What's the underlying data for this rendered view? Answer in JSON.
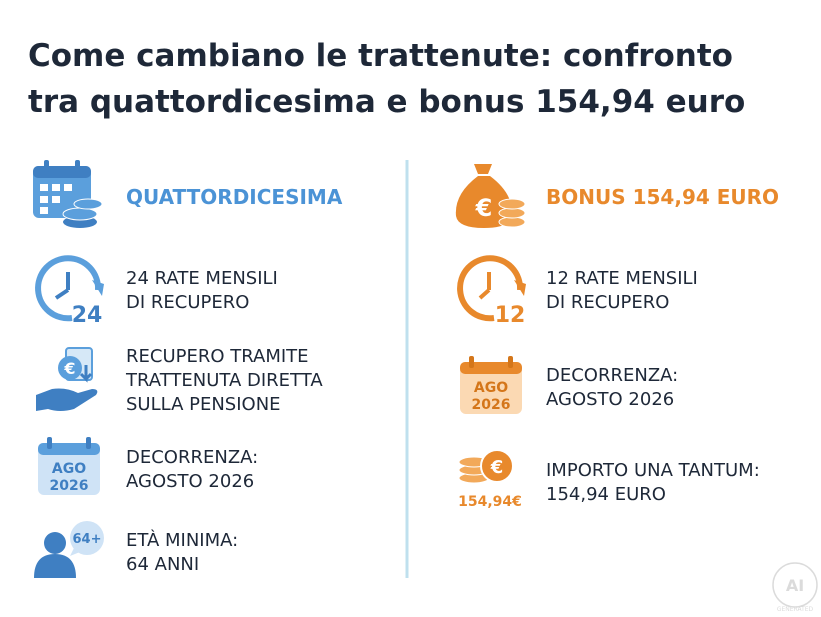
{
  "title": [
    "Come cambiano le trattenute: confronto",
    "tra quattordicesima e bonus 154,94 euro"
  ],
  "left": {
    "heading": "QUATTORDICESIMA",
    "items": [
      {
        "icon": [
          "24"
        ],
        "lines": [
          "24 RATE MENSILI",
          "DI RECUPERO"
        ]
      },
      {
        "icon": [
          "€"
        ],
        "lines": [
          "RECUPERO TRAMITE",
          "TRATTENUTA DIRETTA",
          "SULLA PENSIONE"
        ]
      },
      {
        "icon": [
          "AGO",
          "2026"
        ],
        "lines": [
          "DECORRENZA:",
          "AGOSTO 2026"
        ]
      },
      {
        "icon": [
          "64+"
        ],
        "lines": [
          "ETÀ MINIMA:",
          "64 ANNI"
        ]
      }
    ]
  },
  "right": {
    "heading": "BONUS 154,94 EURO",
    "heading_icon": [
      "€"
    ],
    "items": [
      {
        "icon": [
          "12"
        ],
        "lines": [
          "12 RATE MENSILI",
          "DI RECUPERO"
        ]
      },
      {
        "icon": [
          "AGO",
          "2026"
        ],
        "lines": [
          "DECORRENZA:",
          "AGOSTO 2026"
        ]
      },
      {
        "icon": [
          "€",
          "154,94€"
        ],
        "lines": [
          "IMPORTO UNA TANTUM:",
          "154,94 EURO"
        ]
      }
    ]
  },
  "watermark": [
    "AI",
    "GENERATED"
  ]
}
